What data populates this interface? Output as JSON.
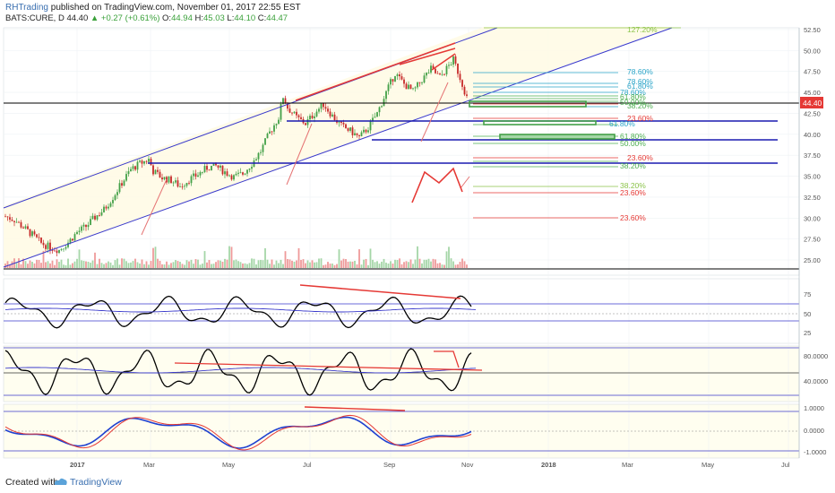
{
  "header": {
    "user": "RHTrading",
    "published": " published on TradingView.com, November 01, 2017 22:55 EST",
    "symbol": "BATS:CURE, D",
    "last": "44.40",
    "change": "▲ +0.27 (+0.61%)",
    "o_label": "O:",
    "o": "44.94",
    "h_label": "H:",
    "h": "45.03",
    "l_label": "L:",
    "l": "44.10",
    "c_label": "C:",
    "c": "44.47"
  },
  "price_axis": {
    "ticks": [
      "52.50",
      "50.00",
      "47.50",
      "45.00",
      "42.50",
      "40.00",
      "37.50",
      "35.00",
      "32.50",
      "30.00",
      "27.50",
      "25.00"
    ],
    "current_label": "44.40"
  },
  "x_axis": {
    "ticks": [
      "2017",
      "Mar",
      "May",
      "Jul",
      "Sep",
      "Nov",
      "2018",
      "Mar",
      "May",
      "Jul"
    ]
  },
  "panel1_axis": [
    "75",
    "50",
    "25"
  ],
  "panel2_axis": [
    "80.0000",
    "40.0000"
  ],
  "panel3_axis": [
    "1.0000",
    "0.0000",
    "-1.0000"
  ],
  "fib_labels": [
    {
      "text": "127.20%",
      "color": "#8bc34a"
    },
    {
      "text": "78.60%",
      "color": "#2aa4c8"
    },
    {
      "text": "78.60%",
      "color": "#2aa4c8"
    },
    {
      "text": "61.80%",
      "color": "#2aa4c8"
    },
    {
      "text": "78.60%",
      "color": "#2aa4c8"
    },
    {
      "text": "61.80%",
      "color": "#4caf50"
    },
    {
      "text": "50.00%",
      "color": "#4caf50"
    },
    {
      "text": "38.20%",
      "color": "#4caf50"
    },
    {
      "text": "23.60%",
      "color": "#e53935"
    },
    {
      "text": "61.80%",
      "color": "#2aa4c8"
    },
    {
      "text": "61.80%",
      "color": "#4caf50"
    },
    {
      "text": "50.00%",
      "color": "#4caf50"
    },
    {
      "text": "23.60%",
      "color": "#e53935"
    },
    {
      "text": "38.20%",
      "color": "#4caf50"
    },
    {
      "text": "38.20%",
      "color": "#8bc34a"
    },
    {
      "text": "23.60%",
      "color": "#e53935"
    },
    {
      "text": "23.60%",
      "color": "#e53935"
    }
  ],
  "footer": {
    "created": "Created with",
    "brand": "TradingView"
  },
  "colors": {
    "up": "#43a047",
    "down": "#c62828",
    "channel": "#3a3acb",
    "trend": "#e53935",
    "accent": "#3a6fb0"
  },
  "chart_data": {
    "type": "candlestick",
    "symbol": "BATS:CURE",
    "interval": "D",
    "ylim": [
      22.5,
      53.5
    ],
    "grid": true,
    "horizontal_levels": [
      44.2,
      41.6,
      39.3,
      36.5
    ],
    "close_path": [
      [
        0,
        30.2
      ],
      [
        4,
        29.8
      ],
      [
        8,
        28.9
      ],
      [
        12,
        28.0
      ],
      [
        16,
        27.0
      ],
      [
        20,
        26.5
      ],
      [
        24,
        26.2
      ],
      [
        28,
        27.1
      ],
      [
        32,
        28.3
      ],
      [
        36,
        29.0
      ],
      [
        40,
        30.1
      ],
      [
        44,
        31.0
      ],
      [
        48,
        32.5
      ],
      [
        52,
        34.2
      ],
      [
        56,
        35.8
      ],
      [
        60,
        36.5
      ],
      [
        64,
        37.0
      ],
      [
        66,
        35.6
      ],
      [
        70,
        34.8
      ],
      [
        74,
        34.5
      ],
      [
        78,
        33.8
      ],
      [
        82,
        34.6
      ],
      [
        86,
        35.2
      ],
      [
        90,
        36.0
      ],
      [
        94,
        36.2
      ],
      [
        98,
        35.5
      ],
      [
        102,
        34.9
      ],
      [
        106,
        35.3
      ],
      [
        110,
        36.5
      ],
      [
        114,
        38.0
      ],
      [
        118,
        40.2
      ],
      [
        122,
        42.0
      ],
      [
        124,
        44.5
      ],
      [
        126,
        43.2
      ],
      [
        130,
        42.0
      ],
      [
        134,
        41.3
      ],
      [
        138,
        42.5
      ],
      [
        142,
        43.6
      ],
      [
        146,
        42.2
      ],
      [
        150,
        41.0
      ],
      [
        154,
        40.4
      ],
      [
        158,
        39.6
      ],
      [
        162,
        40.8
      ],
      [
        166,
        42.5
      ],
      [
        170,
        45.0
      ],
      [
        174,
        47.3
      ],
      [
        178,
        46.0
      ],
      [
        182,
        45.1
      ],
      [
        186,
        46.5
      ],
      [
        190,
        47.8
      ],
      [
        194,
        46.8
      ],
      [
        198,
        48.2
      ],
      [
        200,
        48.9
      ],
      [
        202,
        47.5
      ],
      [
        204,
        46.0
      ],
      [
        206,
        44.4
      ]
    ],
    "volume_profile": "bars along bottom of price pane, green up days red down days",
    "annotations": [
      "ascending channel",
      "red divergence trendlines",
      "fibonacci retracement/extension levels"
    ]
  }
}
